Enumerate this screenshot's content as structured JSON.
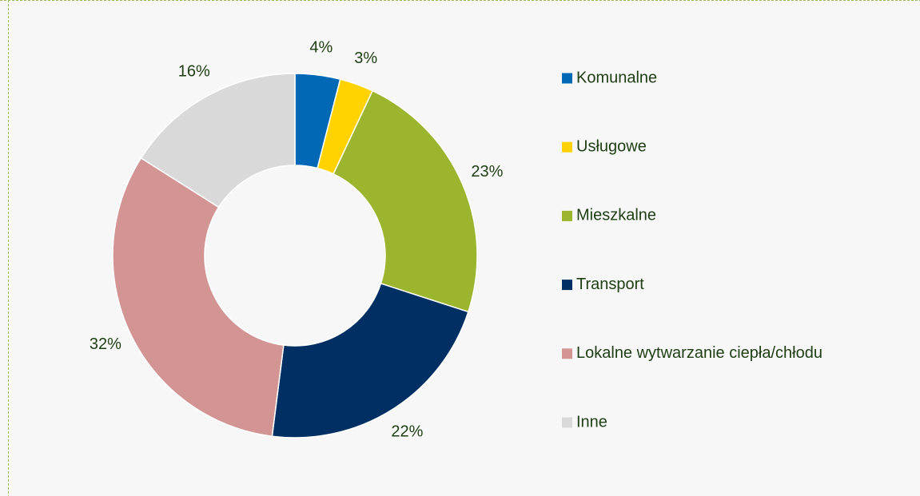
{
  "chart_data": {
    "type": "pie",
    "categories": [
      "Komunalne",
      "Usługowe",
      "Mieszkalne",
      "Transport",
      "Lokalne wytwarzanie ciepła/chłodu",
      "Inne"
    ],
    "values": [
      4,
      3,
      23,
      22,
      32,
      16
    ],
    "value_labels": [
      "4%",
      "3%",
      "23%",
      "22%",
      "32%",
      "16%"
    ],
    "colors": [
      "#0068b4",
      "#ffd200",
      "#9bb52f",
      "#003063",
      "#d39494",
      "#d9d9d9"
    ],
    "legend": "right"
  }
}
